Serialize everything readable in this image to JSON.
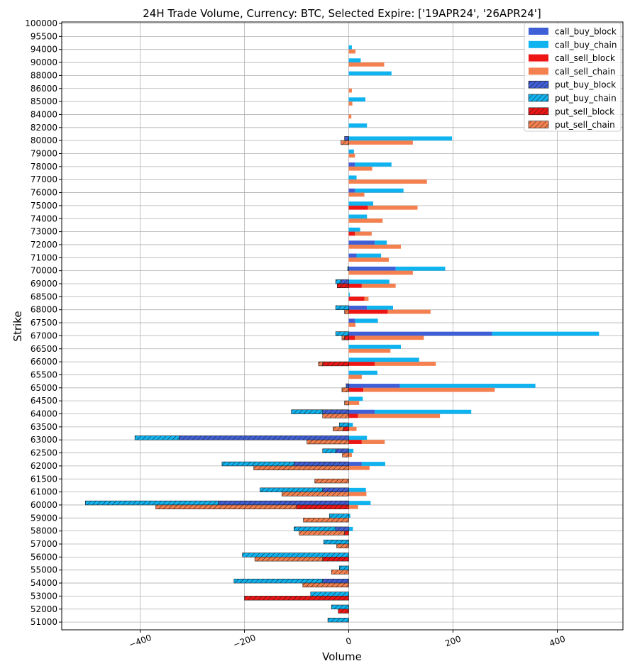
{
  "chart_data": {
    "type": "bar",
    "orientation": "horizontal",
    "title": "24H Trade Volume, Currency: BTC, Selected Expire: ['19APR24', '26APR24']",
    "xlabel": "Volume",
    "ylabel": "Strike",
    "xlim": [
      -535,
      530
    ],
    "xticks": [
      -400,
      -200,
      0,
      200,
      400
    ],
    "xtick_labels": [
      "−400",
      "−200",
      "0",
      "200",
      "400"
    ],
    "grid": true,
    "legend_position": "top-right",
    "categories": [
      "100000",
      "95500",
      "94000",
      "90000",
      "88000",
      "86000",
      "85000",
      "84000",
      "82000",
      "80000",
      "79000",
      "78000",
      "77000",
      "76000",
      "75000",
      "74000",
      "73000",
      "72000",
      "71000",
      "70000",
      "69000",
      "68500",
      "68000",
      "67500",
      "67000",
      "66500",
      "66000",
      "65500",
      "65000",
      "64500",
      "64000",
      "63500",
      "63000",
      "62500",
      "62000",
      "61500",
      "61000",
      "60000",
      "59000",
      "58000",
      "57000",
      "56000",
      "55000",
      "54000",
      "53000",
      "52000",
      "51000"
    ],
    "series": [
      {
        "name": "call_buy_block",
        "color": "#3f5fd6",
        "hatch": false,
        "side": "call",
        "values": [
          0,
          0,
          0,
          0,
          0,
          0,
          0,
          0,
          0,
          0,
          0,
          12,
          0,
          12,
          0,
          0,
          0,
          50,
          15,
          90,
          0,
          0,
          35,
          12,
          275,
          0,
          0,
          0,
          98,
          0,
          50,
          0,
          0,
          0,
          25,
          0,
          0,
          0,
          0,
          0,
          0,
          0,
          0,
          0,
          0,
          0,
          0
        ]
      },
      {
        "name": "call_buy_chain",
        "color": "#0fb3f0",
        "hatch": false,
        "side": "call",
        "values": [
          0,
          0,
          6,
          23,
          82,
          0,
          32,
          0,
          35,
          198,
          10,
          70,
          15,
          93,
          47,
          35,
          22,
          23,
          47,
          95,
          78,
          2,
          50,
          44,
          205,
          100,
          135,
          55,
          260,
          27,
          185,
          8,
          35,
          9,
          45,
          0,
          33,
          42,
          3,
          8,
          0,
          0,
          0,
          0,
          0,
          0,
          0
        ]
      },
      {
        "name": "call_sell_block",
        "color": "#ee1515",
        "hatch": false,
        "side": "call",
        "values": [
          0,
          0,
          0,
          0,
          0,
          0,
          0,
          0,
          0,
          0,
          0,
          0,
          0,
          0,
          37,
          0,
          12,
          0,
          0,
          0,
          25,
          30,
          75,
          0,
          12,
          0,
          50,
          0,
          28,
          0,
          18,
          0,
          25,
          0,
          0,
          0,
          0,
          0,
          0,
          0,
          0,
          0,
          0,
          0,
          0,
          0,
          0
        ]
      },
      {
        "name": "call_sell_chain",
        "color": "#f4804f",
        "hatch": false,
        "side": "call",
        "values": [
          0,
          0,
          13,
          68,
          0,
          6,
          7,
          5,
          0,
          123,
          12,
          45,
          150,
          30,
          95,
          65,
          32,
          100,
          77,
          123,
          65,
          8,
          82,
          13,
          132,
          80,
          117,
          25,
          252,
          20,
          157,
          15,
          44,
          6,
          40,
          0,
          34,
          18,
          0,
          0,
          0,
          0,
          0,
          0,
          0,
          0,
          0
        ]
      },
      {
        "name": "put_buy_block",
        "color": "#3f5fd6",
        "hatch": true,
        "side": "put",
        "values": [
          0,
          0,
          0,
          0,
          0,
          0,
          0,
          0,
          0,
          8,
          0,
          0,
          0,
          0,
          0,
          0,
          0,
          0,
          0,
          0,
          15,
          0,
          0,
          0,
          0,
          0,
          0,
          0,
          5,
          0,
          50,
          0,
          325,
          25,
          105,
          0,
          50,
          250,
          0,
          25,
          0,
          0,
          0,
          50,
          0,
          0,
          0
        ]
      },
      {
        "name": "put_buy_chain",
        "color": "#0fb3f0",
        "hatch": true,
        "side": "put",
        "values": [
          0,
          0,
          0,
          0,
          0,
          0,
          0,
          0,
          0,
          0,
          0,
          0,
          0,
          0,
          0,
          0,
          0,
          0,
          0,
          2,
          10,
          0,
          25,
          0,
          25,
          0,
          0,
          0,
          0,
          0,
          60,
          18,
          85,
          25,
          138,
          0,
          120,
          255,
          37,
          80,
          48,
          204,
          18,
          170,
          73,
          33,
          40
        ]
      },
      {
        "name": "put_sell_block",
        "color": "#ee1515",
        "hatch": true,
        "side": "put",
        "values": [
          0,
          0,
          0,
          0,
          0,
          0,
          0,
          0,
          0,
          0,
          0,
          0,
          0,
          0,
          0,
          0,
          0,
          0,
          0,
          0,
          22,
          0,
          0,
          0,
          8,
          0,
          50,
          0,
          0,
          0,
          0,
          10,
          0,
          0,
          0,
          0,
          0,
          100,
          0,
          8,
          0,
          50,
          0,
          0,
          200,
          20,
          0
        ]
      },
      {
        "name": "put_sell_chain",
        "color": "#f4804f",
        "hatch": true,
        "side": "put",
        "values": [
          0,
          0,
          0,
          0,
          0,
          0,
          0,
          0,
          0,
          15,
          0,
          0,
          0,
          0,
          0,
          0,
          0,
          0,
          0,
          0,
          0,
          0,
          8,
          0,
          5,
          0,
          8,
          0,
          13,
          8,
          50,
          20,
          80,
          12,
          182,
          65,
          128,
          270,
          87,
          87,
          23,
          130,
          33,
          88,
          0,
          0,
          0
        ]
      }
    ]
  }
}
